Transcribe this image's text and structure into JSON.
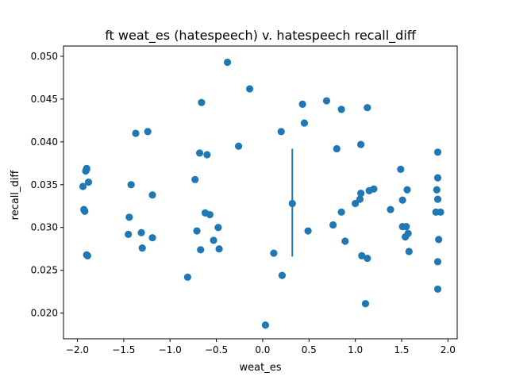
{
  "chart_data": {
    "type": "scatter",
    "title": "ft weat_es (hatespeech) v. hatespeech recall_diff",
    "xlabel": "weat_es",
    "ylabel": "recall_diff",
    "xlim": [
      -2.15,
      2.1
    ],
    "ylim": [
      0.017,
      0.0512
    ],
    "xticks": [
      -2.0,
      -1.5,
      -1.0,
      -0.5,
      0.0,
      0.5,
      1.0,
      1.5,
      2.0
    ],
    "xtick_labels": [
      "−2.0",
      "−1.5",
      "−1.0",
      "−0.5",
      "0.0",
      "0.5",
      "1.0",
      "1.5",
      "2.0"
    ],
    "yticks": [
      0.02,
      0.025,
      0.03,
      0.035,
      0.04,
      0.045,
      0.05
    ],
    "ytick_labels": [
      "0.020",
      "0.025",
      "0.030",
      "0.035",
      "0.040",
      "0.045",
      "0.050"
    ],
    "grid": false,
    "marker_color": "#1f77b4",
    "errorbar": {
      "x": 0.32,
      "y_low": 0.0266,
      "y_high": 0.0392
    },
    "points": [
      {
        "x": -1.94,
        "y": 0.0348
      },
      {
        "x": -1.93,
        "y": 0.0321
      },
      {
        "x": -1.92,
        "y": 0.0319
      },
      {
        "x": -1.91,
        "y": 0.0366
      },
      {
        "x": -1.9,
        "y": 0.0369
      },
      {
        "x": -1.9,
        "y": 0.0368
      },
      {
        "x": -1.89,
        "y": 0.0267
      },
      {
        "x": -1.88,
        "y": 0.0353
      },
      {
        "x": -1.9,
        "y": 0.0268
      },
      {
        "x": -1.45,
        "y": 0.0292
      },
      {
        "x": -1.44,
        "y": 0.0312
      },
      {
        "x": -1.42,
        "y": 0.035
      },
      {
        "x": -1.37,
        "y": 0.041
      },
      {
        "x": -1.31,
        "y": 0.0294
      },
      {
        "x": -1.3,
        "y": 0.0276
      },
      {
        "x": -1.24,
        "y": 0.0412
      },
      {
        "x": -1.19,
        "y": 0.0338
      },
      {
        "x": -1.19,
        "y": 0.0288
      },
      {
        "x": -0.81,
        "y": 0.0242
      },
      {
        "x": -0.73,
        "y": 0.0356
      },
      {
        "x": -0.71,
        "y": 0.0296
      },
      {
        "x": -0.68,
        "y": 0.0387
      },
      {
        "x": -0.67,
        "y": 0.0274
      },
      {
        "x": -0.66,
        "y": 0.0446
      },
      {
        "x": -0.62,
        "y": 0.0317
      },
      {
        "x": -0.6,
        "y": 0.0385
      },
      {
        "x": -0.57,
        "y": 0.0315
      },
      {
        "x": -0.53,
        "y": 0.0285
      },
      {
        "x": -0.48,
        "y": 0.03
      },
      {
        "x": -0.47,
        "y": 0.0275
      },
      {
        "x": -0.38,
        "y": 0.0493
      },
      {
        "x": -0.26,
        "y": 0.0395
      },
      {
        "x": -0.14,
        "y": 0.0462
      },
      {
        "x": 0.03,
        "y": 0.0186
      },
      {
        "x": 0.12,
        "y": 0.027
      },
      {
        "x": 0.2,
        "y": 0.0412
      },
      {
        "x": 0.21,
        "y": 0.0244
      },
      {
        "x": 0.32,
        "y": 0.0328
      },
      {
        "x": 0.43,
        "y": 0.0444
      },
      {
        "x": 0.45,
        "y": 0.0422
      },
      {
        "x": 0.49,
        "y": 0.0296
      },
      {
        "x": 0.69,
        "y": 0.0448
      },
      {
        "x": 0.76,
        "y": 0.0303
      },
      {
        "x": 0.8,
        "y": 0.0392
      },
      {
        "x": 0.85,
        "y": 0.0318
      },
      {
        "x": 0.85,
        "y": 0.0438
      },
      {
        "x": 0.89,
        "y": 0.0284
      },
      {
        "x": 1.0,
        "y": 0.0328
      },
      {
        "x": 1.05,
        "y": 0.0333
      },
      {
        "x": 1.06,
        "y": 0.0397
      },
      {
        "x": 1.06,
        "y": 0.034
      },
      {
        "x": 1.07,
        "y": 0.0267
      },
      {
        "x": 1.11,
        "y": 0.0211
      },
      {
        "x": 1.13,
        "y": 0.044
      },
      {
        "x": 1.13,
        "y": 0.0264
      },
      {
        "x": 1.15,
        "y": 0.0343
      },
      {
        "x": 1.2,
        "y": 0.0345
      },
      {
        "x": 1.38,
        "y": 0.0321
      },
      {
        "x": 1.49,
        "y": 0.0368
      },
      {
        "x": 1.51,
        "y": 0.0332
      },
      {
        "x": 1.51,
        "y": 0.0301
      },
      {
        "x": 1.54,
        "y": 0.0289
      },
      {
        "x": 1.55,
        "y": 0.0301
      },
      {
        "x": 1.56,
        "y": 0.0344
      },
      {
        "x": 1.57,
        "y": 0.0293
      },
      {
        "x": 1.58,
        "y": 0.0272
      },
      {
        "x": 1.87,
        "y": 0.0318
      },
      {
        "x": 1.88,
        "y": 0.0344
      },
      {
        "x": 1.89,
        "y": 0.0388
      },
      {
        "x": 1.89,
        "y": 0.0358
      },
      {
        "x": 1.89,
        "y": 0.0333
      },
      {
        "x": 1.89,
        "y": 0.0228
      },
      {
        "x": 1.9,
        "y": 0.0286
      },
      {
        "x": 1.89,
        "y": 0.026
      },
      {
        "x": 1.92,
        "y": 0.0318
      }
    ]
  }
}
